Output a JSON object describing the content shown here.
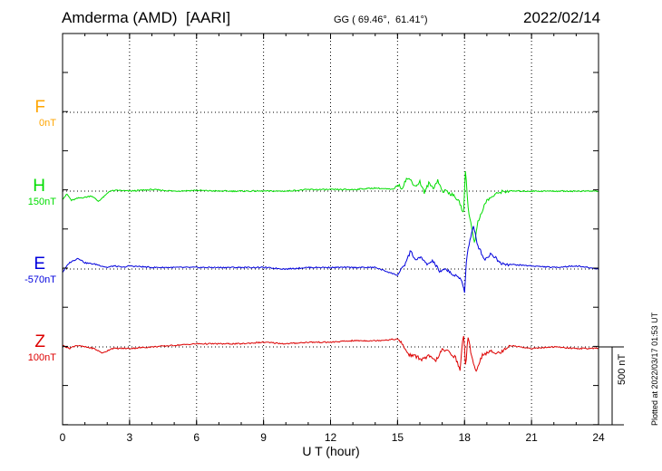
{
  "header": {
    "station": "Amderma (AMD)  [AARI]",
    "coords": "GG ( 69.46°,  61.41°)",
    "date": "2022/02/14"
  },
  "plotted_note": "Plotted at 2022/03/17 01:53 UT",
  "scale_label": "500 nT",
  "chart_data": {
    "type": "line",
    "xlabel": "U T (hour)",
    "xlim": [
      0,
      24
    ],
    "xticks": [
      0,
      3,
      6,
      9,
      12,
      15,
      18,
      21,
      24
    ],
    "scale_bar_nT": 500,
    "series": [
      {
        "name": "F",
        "baseline": "0nT",
        "color": "#ffa500",
        "x": [],
        "offset_nT": []
      },
      {
        "name": "H",
        "baseline": "150nT",
        "color": "#00dd00",
        "x": [
          0,
          0.2,
          0.4,
          0.7,
          1.0,
          1.3,
          1.6,
          1.9,
          2.1,
          2.5,
          3,
          4,
          5,
          6,
          7,
          8,
          9,
          10,
          11,
          12,
          13,
          14,
          14.8,
          15.0,
          15.2,
          15.4,
          15.6,
          15.8,
          16.0,
          16.2,
          16.4,
          16.6,
          16.8,
          17.0,
          17.2,
          17.4,
          17.6,
          17.8,
          17.95,
          18.05,
          18.15,
          18.3,
          18.45,
          18.6,
          18.8,
          19.0,
          19.3,
          19.6,
          20,
          21,
          22,
          23,
          24
        ],
        "offset_nT": [
          -50,
          -20,
          -60,
          -45,
          -40,
          -30,
          -65,
          -30,
          0,
          5,
          0,
          10,
          0,
          5,
          0,
          0,
          0,
          0,
          10,
          10,
          10,
          20,
          10,
          40,
          20,
          80,
          70,
          30,
          60,
          -10,
          50,
          20,
          70,
          0,
          0,
          -20,
          -40,
          -80,
          -150,
          150,
          -100,
          -220,
          -330,
          -200,
          -120,
          -60,
          -30,
          -5,
          0,
          0,
          0,
          0,
          0
        ]
      },
      {
        "name": "E",
        "baseline": "-570nT",
        "color": "#0000dd",
        "x": [
          0,
          0.3,
          0.7,
          1.0,
          1.5,
          2.0,
          2.3,
          2.7,
          3,
          4,
          5,
          6,
          7,
          8,
          9,
          10,
          11,
          12,
          13,
          14,
          15.0,
          15.3,
          15.6,
          15.8,
          16.0,
          16.3,
          16.6,
          16.9,
          17.2,
          17.5,
          17.8,
          17.9,
          18.0,
          18.1,
          18.2,
          18.4,
          18.6,
          18.9,
          19.2,
          19.6,
          20,
          21,
          22,
          23,
          24
        ],
        "offset_nT": [
          -20,
          40,
          70,
          40,
          30,
          10,
          20,
          10,
          20,
          10,
          10,
          10,
          10,
          10,
          10,
          0,
          10,
          10,
          10,
          10,
          -40,
          20,
          120,
          50,
          80,
          30,
          50,
          -20,
          0,
          -40,
          -60,
          -80,
          -150,
          80,
          160,
          270,
          150,
          60,
          100,
          40,
          30,
          20,
          10,
          20,
          0
        ]
      },
      {
        "name": "Z",
        "baseline": "100nT",
        "color": "#dd0000",
        "x": [
          0,
          0.3,
          0.6,
          1.0,
          1.4,
          1.8,
          2.2,
          2.6,
          3,
          4,
          5,
          6,
          7,
          8,
          9,
          10,
          11,
          12,
          13,
          14,
          15.0,
          15.2,
          15.5,
          15.8,
          16.1,
          16.4,
          16.7,
          17.0,
          17.3,
          17.6,
          17.8,
          17.95,
          18.05,
          18.15,
          18.3,
          18.5,
          18.8,
          19.2,
          19.6,
          20,
          21,
          22,
          23,
          24
        ],
        "offset_nT": [
          10,
          -10,
          10,
          0,
          -10,
          -40,
          -10,
          -10,
          -10,
          0,
          10,
          20,
          20,
          20,
          30,
          20,
          30,
          30,
          40,
          40,
          50,
          20,
          -50,
          -60,
          -80,
          -60,
          -90,
          -20,
          -30,
          -70,
          -150,
          100,
          -130,
          60,
          -40,
          -160,
          -50,
          -30,
          -40,
          10,
          -10,
          0,
          -10,
          -10
        ]
      }
    ]
  }
}
